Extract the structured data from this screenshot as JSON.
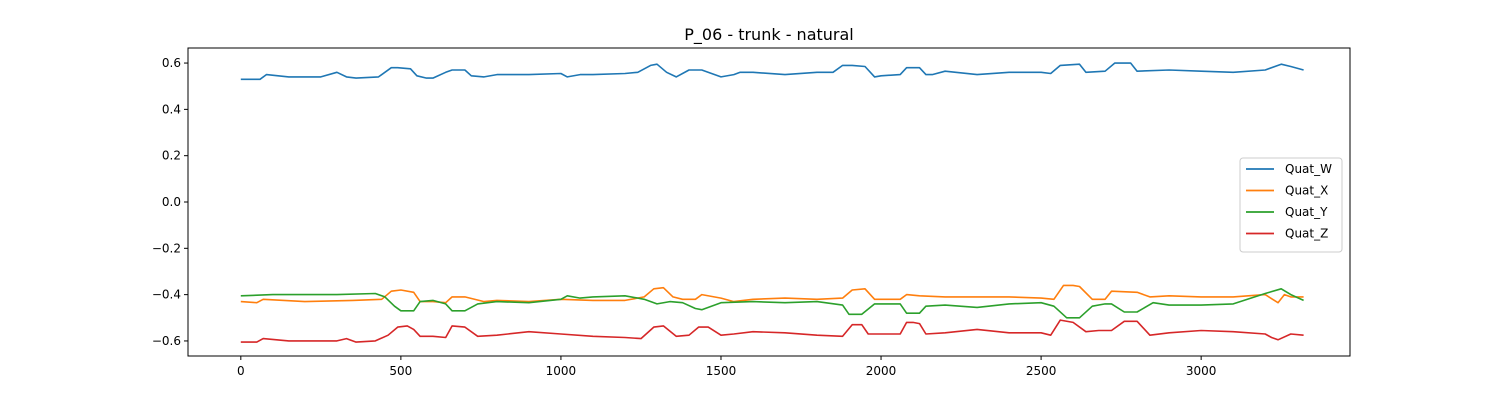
{
  "chart_data": {
    "type": "line",
    "title": "P_06 - trunk - natural",
    "xlabel": "",
    "ylabel": "",
    "xlim": [
      -165,
      3465
    ],
    "ylim": [
      -0.665,
      0.665
    ],
    "xticks": [
      0,
      500,
      1000,
      1500,
      2000,
      2500,
      3000
    ],
    "xtick_labels": [
      "0",
      "500",
      "1000",
      "1500",
      "2000",
      "2500",
      "3000"
    ],
    "yticks": [
      -0.6,
      -0.4,
      -0.2,
      0.0,
      0.2,
      0.4,
      0.6
    ],
    "ytick_labels": [
      "−0.6",
      "−0.4",
      "−0.2",
      "0.0",
      "0.2",
      "0.4",
      "0.6"
    ],
    "grid": false,
    "legend_position": "center-right",
    "series": [
      {
        "name": "Quat_W",
        "color": "#1f77b4",
        "x": [
          0,
          60,
          80,
          150,
          250,
          300,
          330,
          360,
          430,
          470,
          490,
          530,
          550,
          580,
          600,
          640,
          660,
          700,
          720,
          760,
          800,
          900,
          1000,
          1020,
          1060,
          1100,
          1200,
          1240,
          1280,
          1300,
          1330,
          1360,
          1400,
          1440,
          1500,
          1540,
          1560,
          1600,
          1700,
          1800,
          1850,
          1880,
          1910,
          1950,
          1980,
          2000,
          2060,
          2080,
          2120,
          2140,
          2160,
          2200,
          2300,
          2400,
          2500,
          2530,
          2560,
          2620,
          2640,
          2700,
          2730,
          2780,
          2800,
          2900,
          3000,
          3100,
          3200,
          3250,
          3280,
          3320
        ],
        "values": [
          0.53,
          0.53,
          0.55,
          0.54,
          0.54,
          0.56,
          0.54,
          0.535,
          0.54,
          0.58,
          0.58,
          0.575,
          0.545,
          0.535,
          0.535,
          0.56,
          0.57,
          0.57,
          0.545,
          0.54,
          0.55,
          0.55,
          0.555,
          0.54,
          0.55,
          0.55,
          0.555,
          0.56,
          0.59,
          0.595,
          0.56,
          0.54,
          0.57,
          0.57,
          0.54,
          0.55,
          0.56,
          0.56,
          0.55,
          0.56,
          0.56,
          0.59,
          0.59,
          0.585,
          0.54,
          0.545,
          0.55,
          0.58,
          0.58,
          0.55,
          0.55,
          0.565,
          0.55,
          0.56,
          0.56,
          0.555,
          0.59,
          0.595,
          0.56,
          0.565,
          0.6,
          0.6,
          0.565,
          0.57,
          0.565,
          0.56,
          0.57,
          0.595,
          0.585,
          0.57
        ]
      },
      {
        "name": "Quat_X",
        "color": "#ff7f0e",
        "x": [
          0,
          50,
          70,
          200,
          350,
          440,
          470,
          500,
          540,
          560,
          600,
          640,
          660,
          700,
          760,
          800,
          900,
          1000,
          1100,
          1200,
          1260,
          1290,
          1320,
          1350,
          1380,
          1420,
          1440,
          1500,
          1540,
          1600,
          1700,
          1800,
          1880,
          1910,
          1950,
          1980,
          2000,
          2060,
          2080,
          2120,
          2200,
          2300,
          2400,
          2500,
          2540,
          2570,
          2600,
          2620,
          2660,
          2700,
          2720,
          2800,
          2840,
          2900,
          3000,
          3100,
          3200,
          3240,
          3260,
          3280,
          3320
        ],
        "values": [
          -0.43,
          -0.435,
          -0.42,
          -0.43,
          -0.425,
          -0.42,
          -0.385,
          -0.38,
          -0.39,
          -0.43,
          -0.43,
          -0.435,
          -0.41,
          -0.41,
          -0.43,
          -0.425,
          -0.43,
          -0.42,
          -0.425,
          -0.425,
          -0.41,
          -0.375,
          -0.37,
          -0.41,
          -0.42,
          -0.42,
          -0.4,
          -0.415,
          -0.43,
          -0.42,
          -0.415,
          -0.42,
          -0.415,
          -0.38,
          -0.375,
          -0.42,
          -0.42,
          -0.42,
          -0.4,
          -0.405,
          -0.41,
          -0.41,
          -0.41,
          -0.415,
          -0.42,
          -0.36,
          -0.36,
          -0.365,
          -0.42,
          -0.42,
          -0.385,
          -0.39,
          -0.41,
          -0.405,
          -0.41,
          -0.41,
          -0.4,
          -0.435,
          -0.4,
          -0.41,
          -0.41
        ]
      },
      {
        "name": "Quat_Y",
        "color": "#2ca02c",
        "x": [
          0,
          100,
          200,
          300,
          420,
          450,
          480,
          500,
          540,
          560,
          600,
          640,
          660,
          700,
          740,
          800,
          900,
          1000,
          1020,
          1060,
          1100,
          1200,
          1260,
          1300,
          1340,
          1380,
          1420,
          1440,
          1500,
          1600,
          1700,
          1800,
          1880,
          1900,
          1940,
          1980,
          2000,
          2060,
          2080,
          2120,
          2140,
          2200,
          2300,
          2400,
          2500,
          2540,
          2580,
          2620,
          2660,
          2700,
          2720,
          2760,
          2800,
          2850,
          2900,
          3000,
          3100,
          3200,
          3250,
          3280,
          3320
        ],
        "values": [
          -0.405,
          -0.4,
          -0.4,
          -0.4,
          -0.395,
          -0.41,
          -0.45,
          -0.47,
          -0.47,
          -0.43,
          -0.425,
          -0.44,
          -0.47,
          -0.47,
          -0.44,
          -0.43,
          -0.435,
          -0.42,
          -0.405,
          -0.415,
          -0.41,
          -0.405,
          -0.42,
          -0.44,
          -0.43,
          -0.435,
          -0.46,
          -0.465,
          -0.435,
          -0.43,
          -0.435,
          -0.43,
          -0.445,
          -0.485,
          -0.485,
          -0.44,
          -0.44,
          -0.44,
          -0.48,
          -0.48,
          -0.45,
          -0.445,
          -0.455,
          -0.44,
          -0.435,
          -0.45,
          -0.5,
          -0.5,
          -0.45,
          -0.44,
          -0.44,
          -0.475,
          -0.475,
          -0.435,
          -0.445,
          -0.445,
          -0.44,
          -0.395,
          -0.375,
          -0.4,
          -0.425
        ]
      },
      {
        "name": "Quat_Z",
        "color": "#d62728",
        "x": [
          0,
          50,
          70,
          150,
          300,
          330,
          360,
          420,
          460,
          490,
          520,
          540,
          560,
          600,
          640,
          660,
          700,
          740,
          800,
          900,
          1000,
          1100,
          1200,
          1250,
          1290,
          1320,
          1360,
          1400,
          1430,
          1460,
          1500,
          1540,
          1600,
          1700,
          1800,
          1880,
          1910,
          1940,
          1960,
          2000,
          2060,
          2080,
          2100,
          2120,
          2140,
          2200,
          2300,
          2400,
          2500,
          2530,
          2560,
          2600,
          2640,
          2680,
          2720,
          2760,
          2800,
          2840,
          2900,
          3000,
          3100,
          3200,
          3220,
          3240,
          3280,
          3320
        ],
        "values": [
          -0.605,
          -0.605,
          -0.59,
          -0.6,
          -0.6,
          -0.59,
          -0.605,
          -0.6,
          -0.575,
          -0.54,
          -0.535,
          -0.55,
          -0.58,
          -0.58,
          -0.585,
          -0.535,
          -0.54,
          -0.58,
          -0.575,
          -0.56,
          -0.57,
          -0.58,
          -0.585,
          -0.59,
          -0.54,
          -0.535,
          -0.58,
          -0.575,
          -0.54,
          -0.54,
          -0.575,
          -0.57,
          -0.56,
          -0.565,
          -0.575,
          -0.58,
          -0.53,
          -0.53,
          -0.57,
          -0.57,
          -0.57,
          -0.52,
          -0.52,
          -0.525,
          -0.57,
          -0.565,
          -0.55,
          -0.565,
          -0.565,
          -0.575,
          -0.51,
          -0.52,
          -0.56,
          -0.555,
          -0.555,
          -0.515,
          -0.515,
          -0.575,
          -0.565,
          -0.555,
          -0.56,
          -0.57,
          -0.585,
          -0.595,
          -0.57,
          -0.575
        ]
      }
    ]
  }
}
